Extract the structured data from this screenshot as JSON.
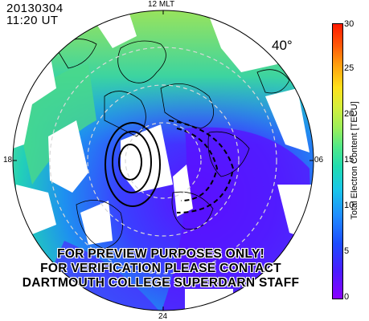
{
  "header": {
    "date": "20130304",
    "time": "11:20 UT"
  },
  "mlt_labels": {
    "top": "12 MLT",
    "left": "18",
    "right": "06",
    "bottom": "24"
  },
  "latitude_label": "40°",
  "watermark": [
    "FOR PREVIEW PURPOSES ONLY!",
    "FOR VERIFICATION PLEASE CONTACT",
    "DARTMOUTH COLLEGE SUPERDARN STAFF"
  ],
  "colorbar": {
    "label": "Total Electron Content [TECU]",
    "ticks": [
      "0",
      "5",
      "10",
      "15",
      "20",
      "25",
      "30"
    ],
    "min": 0,
    "max": 30
  },
  "colors": {
    "low": "#8a00ff",
    "mid": "#19c8e8",
    "high": "#ff1a00"
  }
}
